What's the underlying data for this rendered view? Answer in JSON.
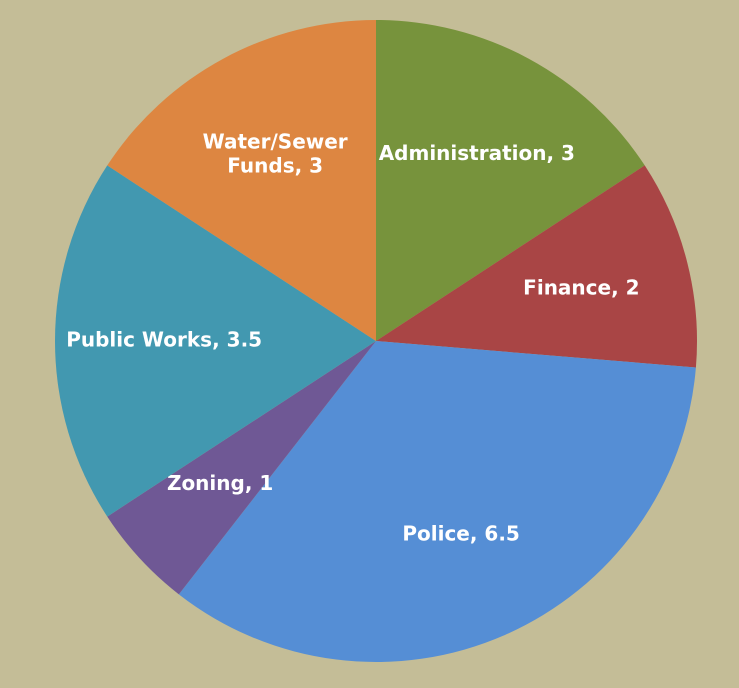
{
  "chart_data": {
    "type": "pie",
    "values": [
      3,
      2,
      6.5,
      1,
      3.5,
      3
    ],
    "value_labels": [
      "Administration, 3",
      "Finance, 2",
      "Police, 6.5",
      "Zoning, 1",
      "Public Works, 3.5",
      "Water/Sewer Funds, 3"
    ],
    "colors": [
      "#77933c",
      "#a94545",
      "#558ed5",
      "#6f5895",
      "#4298b0",
      "#dd8641"
    ]
  }
}
